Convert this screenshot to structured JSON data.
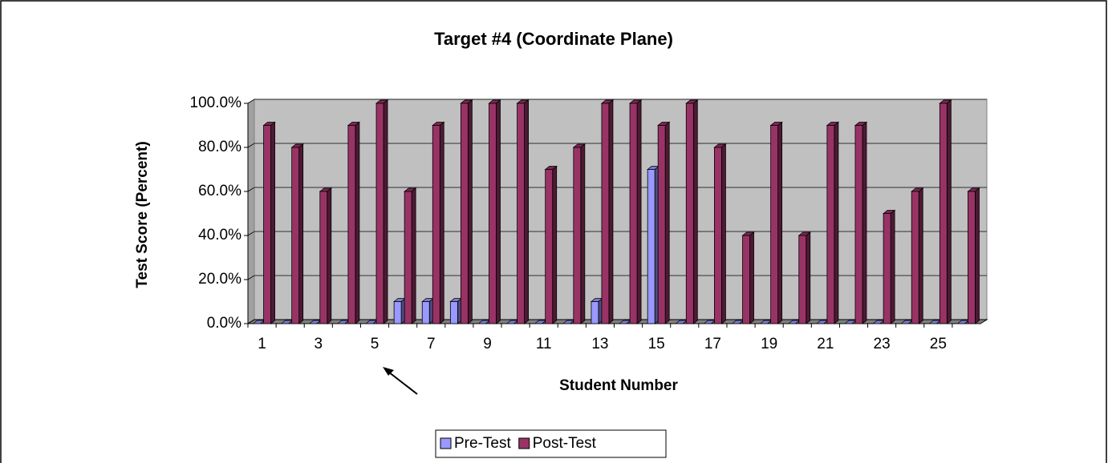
{
  "chart_data": {
    "type": "bar3d",
    "title": "Target #4 (Coordinate Plane)",
    "x_label": "Student Number",
    "y_label": "Test Score (Percent)",
    "categories": [
      1,
      null,
      3,
      null,
      5,
      null,
      7,
      null,
      9,
      null,
      11,
      null,
      13,
      null,
      15,
      null,
      17,
      null,
      19,
      null,
      21,
      null,
      23,
      null,
      25,
      null
    ],
    "series": [
      {
        "name": "Pre-Test",
        "color": "#9999ff",
        "values": [
          0,
          0,
          0,
          0,
          0,
          10,
          10,
          10,
          0,
          0,
          0,
          0,
          10,
          0,
          70,
          0,
          0,
          0,
          0,
          0,
          0,
          0,
          0,
          0,
          0,
          0
        ]
      },
      {
        "name": "Post-Test",
        "color": "#993366",
        "values": [
          90,
          80,
          60,
          90,
          100,
          60,
          90,
          100,
          100,
          100,
          70,
          80,
          100,
          100,
          90,
          100,
          80,
          40,
          90,
          40,
          90,
          90,
          50,
          60,
          100,
          60
        ]
      }
    ],
    "ylim": [
      0,
      100
    ],
    "yticks": [
      {
        "value": 0,
        "label": "0.0%"
      },
      {
        "value": 20,
        "label": "20.0%"
      },
      {
        "value": 40,
        "label": "40.0%"
      },
      {
        "value": 60,
        "label": "60.0%"
      },
      {
        "value": 80,
        "label": "80.0%"
      },
      {
        "value": 100,
        "label": "100.0%"
      }
    ],
    "grid": true,
    "legend": "bottom"
  }
}
